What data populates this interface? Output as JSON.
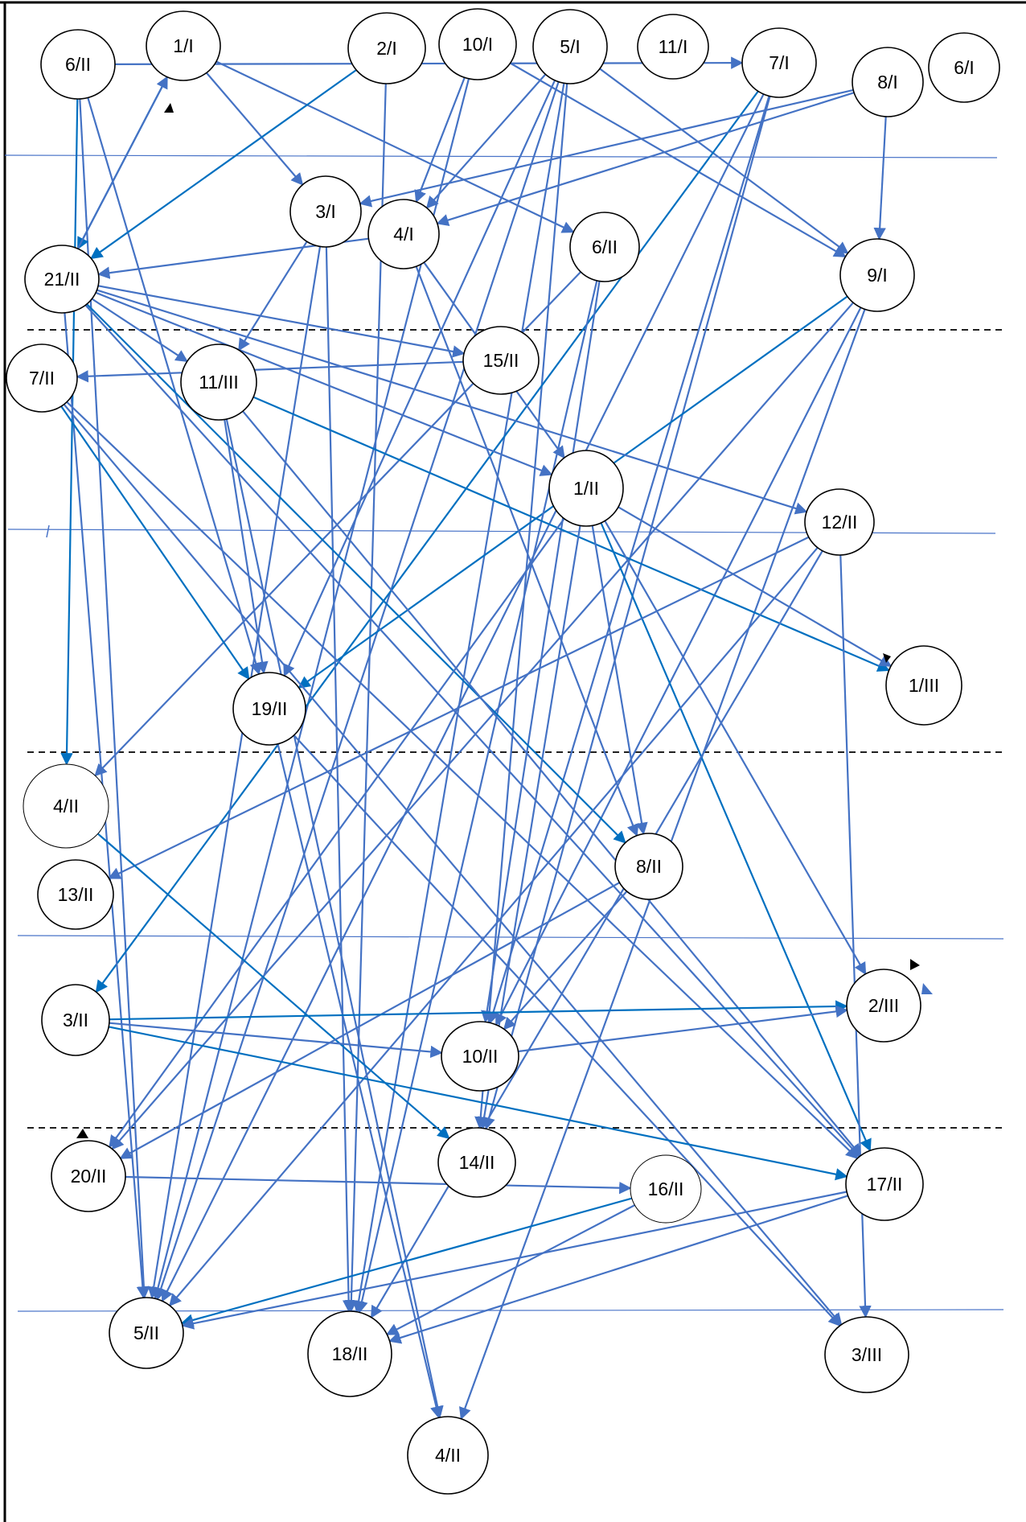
{
  "colors": {
    "edge": "#4472C4",
    "edge_dark": "#0070C0",
    "node_stroke": "#000000",
    "separator": "#4a74c8"
  },
  "nodes": [
    {
      "id": "n6II_top",
      "label": "6/II"
    },
    {
      "id": "n1I",
      "label": "1/I"
    },
    {
      "id": "n2I",
      "label": "2/I"
    },
    {
      "id": "n10I",
      "label": "10/I"
    },
    {
      "id": "n5I",
      "label": "5/I"
    },
    {
      "id": "n11I",
      "label": "11/I"
    },
    {
      "id": "n7I",
      "label": "7/I"
    },
    {
      "id": "n8I",
      "label": "8/I"
    },
    {
      "id": "n6I",
      "label": "6/I"
    },
    {
      "id": "n3I",
      "label": "3/I"
    },
    {
      "id": "n4I",
      "label": "4/I"
    },
    {
      "id": "n6II",
      "label": "6/II"
    },
    {
      "id": "n9I",
      "label": "9/I"
    },
    {
      "id": "n21II",
      "label": "21/II"
    },
    {
      "id": "n15II",
      "label": "15/II"
    },
    {
      "id": "n7II",
      "label": "7/II"
    },
    {
      "id": "n11III",
      "label": "11/III"
    },
    {
      "id": "n1II",
      "label": "1/II"
    },
    {
      "id": "n12II",
      "label": "12/II"
    },
    {
      "id": "n1III",
      "label": "1/III"
    },
    {
      "id": "n19II",
      "label": "19/II"
    },
    {
      "id": "n4II_mid",
      "label": "4/II"
    },
    {
      "id": "n8II",
      "label": "8/II"
    },
    {
      "id": "n13II",
      "label": "13/II"
    },
    {
      "id": "n3II",
      "label": "3/II"
    },
    {
      "id": "n2III",
      "label": "2/III"
    },
    {
      "id": "n10II",
      "label": "10/II"
    },
    {
      "id": "n20II",
      "label": "20/II"
    },
    {
      "id": "n14II",
      "label": "14/II"
    },
    {
      "id": "n16II",
      "label": "16/II"
    },
    {
      "id": "n17II",
      "label": "17/II"
    },
    {
      "id": "n5II",
      "label": "5/II"
    },
    {
      "id": "n18II",
      "label": "18/II"
    },
    {
      "id": "n3III",
      "label": "3/III"
    },
    {
      "id": "n4II_bot",
      "label": "4/II"
    }
  ],
  "edges": [
    [
      "n6II_top",
      "n7I"
    ],
    [
      "n6II_top",
      "n4II_mid"
    ],
    [
      "n6II_top",
      "n5II"
    ],
    [
      "n6II_top",
      "n19II"
    ],
    [
      "n1I",
      "n3I"
    ],
    [
      "n1I",
      "n6II"
    ],
    [
      "n1I",
      "n21II"
    ],
    [
      "n21II",
      "n1I"
    ],
    [
      "n2I",
      "n21II"
    ],
    [
      "n2I",
      "n18II"
    ],
    [
      "n10I",
      "n4I"
    ],
    [
      "n10I",
      "n9I"
    ],
    [
      "n10I",
      "n5II"
    ],
    [
      "n5I",
      "n4I"
    ],
    [
      "n5I",
      "n9I"
    ],
    [
      "n5I",
      "n19II"
    ],
    [
      "n5I",
      "n5II"
    ],
    [
      "n5I",
      "n18II"
    ],
    [
      "n5I",
      "n14II"
    ],
    [
      "n7I",
      "n3II"
    ],
    [
      "n7I",
      "n10II"
    ],
    [
      "n7I",
      "n14II"
    ],
    [
      "n7I",
      "n5II"
    ],
    [
      "n8I",
      "n3I"
    ],
    [
      "n8I",
      "n4I"
    ],
    [
      "n8I",
      "n9I"
    ],
    [
      "n9I",
      "n19II"
    ],
    [
      "n9I",
      "n20II"
    ],
    [
      "n9I",
      "n4II_bot"
    ],
    [
      "n9I",
      "n10II"
    ],
    [
      "n3I",
      "n11III"
    ],
    [
      "n3I",
      "n18II"
    ],
    [
      "n3I",
      "n5II"
    ],
    [
      "n4I",
      "n21II"
    ],
    [
      "n4I",
      "n1II"
    ],
    [
      "n4I",
      "n8II"
    ],
    [
      "n6II",
      "n4II_mid"
    ],
    [
      "n6II",
      "n10II"
    ],
    [
      "n6II",
      "n18II"
    ],
    [
      "n21II",
      "n11III"
    ],
    [
      "n21II",
      "n15II"
    ],
    [
      "n21II",
      "n1II"
    ],
    [
      "n21II",
      "n12II"
    ],
    [
      "n21II",
      "n8II"
    ],
    [
      "n21II",
      "n17II"
    ],
    [
      "n21II",
      "n5II"
    ],
    [
      "n15II",
      "n7II"
    ],
    [
      "n7II",
      "n19II"
    ],
    [
      "n7II",
      "n17II"
    ],
    [
      "n7II",
      "n3III"
    ],
    [
      "n11III",
      "n1III"
    ],
    [
      "n11III",
      "n19II"
    ],
    [
      "n11III",
      "n4II_bot"
    ],
    [
      "n11III",
      "n17II"
    ],
    [
      "n1II",
      "n1III"
    ],
    [
      "n1II",
      "n8II"
    ],
    [
      "n1II",
      "n17II"
    ],
    [
      "n1II",
      "n14II"
    ],
    [
      "n1II",
      "n20II"
    ],
    [
      "n1II",
      "n2III"
    ],
    [
      "n12II",
      "n13II"
    ],
    [
      "n12II",
      "n3III"
    ],
    [
      "n12II",
      "n5II"
    ],
    [
      "n12II",
      "n18II"
    ],
    [
      "n19II",
      "n4II_bot"
    ],
    [
      "n19II",
      "n3III"
    ],
    [
      "n4II_mid",
      "n14II"
    ],
    [
      "n8II",
      "n10II"
    ],
    [
      "n8II",
      "n20II"
    ],
    [
      "n3II",
      "n2III"
    ],
    [
      "n3II",
      "n10II"
    ],
    [
      "n3II",
      "n17II"
    ],
    [
      "n10II",
      "n2III"
    ],
    [
      "n16II",
      "n5II"
    ],
    [
      "n16II",
      "n18II"
    ],
    [
      "n17II",
      "n5II"
    ],
    [
      "n17II",
      "n18II"
    ],
    [
      "n20II",
      "n16II"
    ]
  ]
}
